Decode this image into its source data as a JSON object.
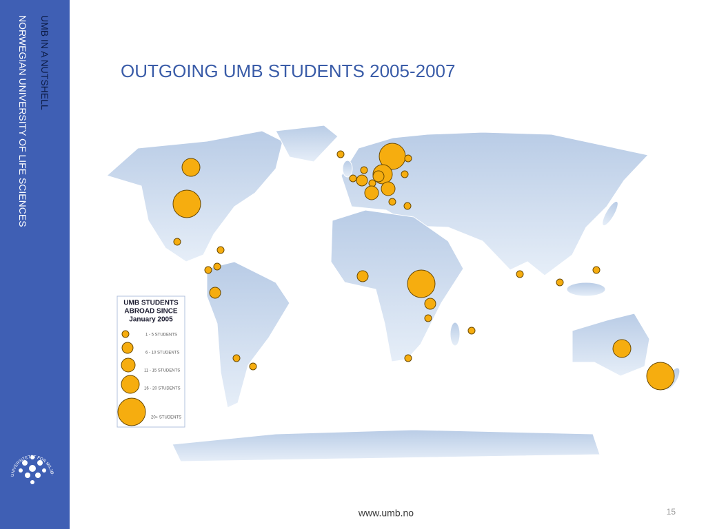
{
  "sidebar": {
    "line1": "UMB IN A NUTSHELL",
    "line2": "NORWEGIAN UNIVERSITY OF LIFE SCIENCES",
    "logo_text": "UNIVERSITETET FOR MILJØ- OG BIOVITENSKAP"
  },
  "title": "OUTGOING UMB STUDENTS 2005-2007",
  "legend": {
    "title_lines": [
      "UMB STUDENTS",
      "ABROAD SINCE",
      "January 2005"
    ],
    "items": [
      "1 - 5 STUDENTS",
      "6 - 10 STUDENTS",
      "11 - 15 STUDENTS",
      "16 - 20 STUDENTS",
      "20+ STUDENTS"
    ]
  },
  "footer": {
    "url": "www.umb.no",
    "page": "15"
  }
}
